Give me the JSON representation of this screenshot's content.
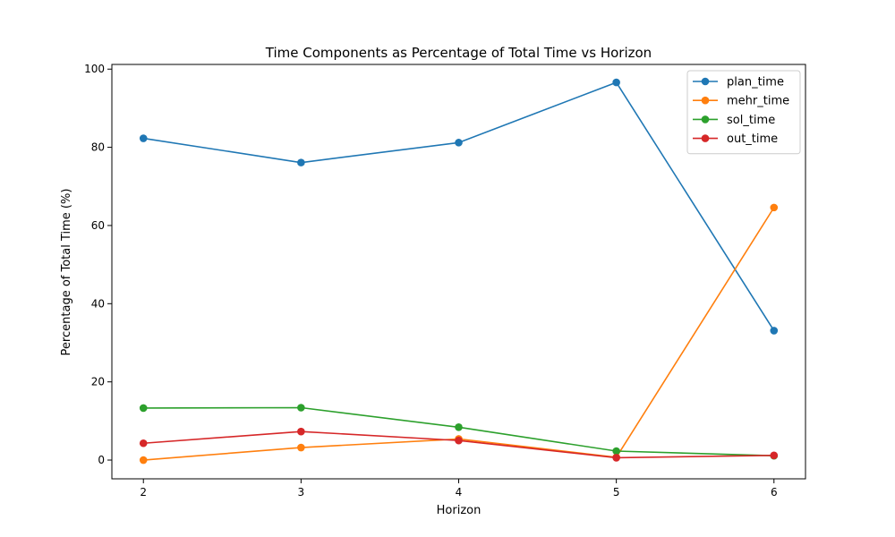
{
  "chart_data": {
    "type": "line",
    "title": "Time Components as Percentage of Total Time vs Horizon",
    "xlabel": "Horizon",
    "ylabel": "Percentage of Total Time (%)",
    "x": [
      2,
      3,
      4,
      5,
      6
    ],
    "xlim": [
      1.8,
      6.2
    ],
    "ylim": [
      -4.8,
      101.2
    ],
    "xticks": [
      "2",
      "3",
      "4",
      "5",
      "6"
    ],
    "yticks": [
      "0",
      "20",
      "40",
      "60",
      "80",
      "100"
    ],
    "grid": false,
    "legend_position": "top-right",
    "series": [
      {
        "name": "plan_time",
        "color": "#1f77b4",
        "values": [
          82.3,
          76.1,
          81.2,
          96.6,
          33.1
        ]
      },
      {
        "name": "mehr_time",
        "color": "#ff7f0e",
        "values": [
          0.0,
          3.2,
          5.4,
          0.7,
          64.6
        ]
      },
      {
        "name": "sol_time",
        "color": "#2ca02c",
        "values": [
          13.3,
          13.4,
          8.4,
          2.3,
          1.1
        ]
      },
      {
        "name": "out_time",
        "color": "#d62728",
        "values": [
          4.3,
          7.3,
          5.0,
          0.6,
          1.2
        ]
      }
    ]
  }
}
